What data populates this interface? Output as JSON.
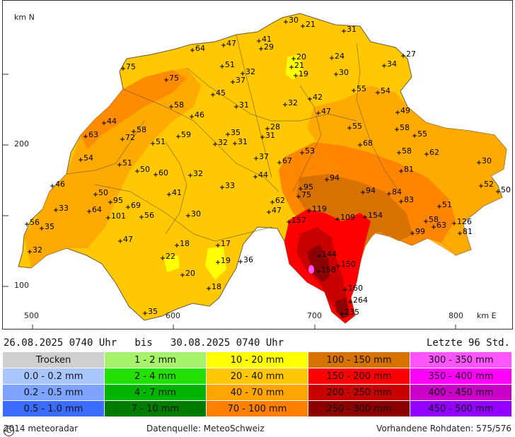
{
  "axes": {
    "north_label": "km N",
    "east_label": "km E",
    "y_ticks": [
      "200",
      "100"
    ],
    "x_ticks": [
      "500",
      "600",
      "700",
      "800"
    ]
  },
  "info": {
    "period": "26.08.2025 0740 Uhr   bis   30.08.2025 0740 Uhr",
    "last": "Letzte 96 Std."
  },
  "legend": [
    {
      "label": "Trocken",
      "color": "#cfcfcf"
    },
    {
      "label": "1 - 2 mm",
      "color": "#a6f26a"
    },
    {
      "label": "10 - 20 mm",
      "color": "#ffff00"
    },
    {
      "label": "100 - 150 mm",
      "color": "#d77100"
    },
    {
      "label": "300 - 350 mm",
      "color": "#ff55ff"
    },
    {
      "label": "0.0 - 0.2 mm",
      "color": "#aac6ff"
    },
    {
      "label": "2 - 4 mm",
      "color": "#22e000"
    },
    {
      "label": "20 - 40 mm",
      "color": "#ffc800"
    },
    {
      "label": "150 - 200 mm",
      "color": "#ff0000"
    },
    {
      "label": "350 - 400 mm",
      "color": "#ff00ff"
    },
    {
      "label": "0.2 - 0.5 mm",
      "color": "#7ea3ff"
    },
    {
      "label": "4 - 7 mm",
      "color": "#00b400"
    },
    {
      "label": "40 - 70 mm",
      "color": "#ffa500"
    },
    {
      "label": "200 - 250 mm",
      "color": "#c80000"
    },
    {
      "label": "400 - 450 mm",
      "color": "#c800c8"
    },
    {
      "label": "0.5 - 1.0 mm",
      "color": "#3a6cff"
    },
    {
      "label": "7 - 10 mm",
      "color": "#007d00"
    },
    {
      "label": "70 - 100 mm",
      "color": "#ff8000"
    },
    {
      "label": "250 - 300 mm",
      "color": "#8c0000"
    },
    {
      "label": "450 - 500 mm",
      "color": "#9400ff"
    }
  ],
  "footer": {
    "copyright": "2014  meteoradar",
    "source": "Datenquelle: MeteoSchweiz",
    "raw": "Vorhandene Rohdaten: 575/576"
  },
  "stations": [
    {
      "v": "30",
      "x": 400,
      "y": 30
    },
    {
      "v": "21",
      "x": 424,
      "y": 36
    },
    {
      "v": "31",
      "x": 482,
      "y": 43
    },
    {
      "v": "41",
      "x": 362,
      "y": 57
    },
    {
      "v": "47",
      "x": 312,
      "y": 63
    },
    {
      "v": "64",
      "x": 268,
      "y": 70
    },
    {
      "v": "29",
      "x": 365,
      "y": 68
    },
    {
      "v": "27",
      "x": 566,
      "y": 78
    },
    {
      "v": "24",
      "x": 465,
      "y": 81
    },
    {
      "v": "20",
      "x": 411,
      "y": 82
    },
    {
      "v": "34",
      "x": 539,
      "y": 92
    },
    {
      "v": "75",
      "x": 170,
      "y": 96
    },
    {
      "v": "51",
      "x": 310,
      "y": 93
    },
    {
      "v": "21",
      "x": 408,
      "y": 94
    },
    {
      "v": "32",
      "x": 339,
      "y": 103
    },
    {
      "v": "30",
      "x": 471,
      "y": 104
    },
    {
      "v": "19",
      "x": 414,
      "y": 106
    },
    {
      "v": "75",
      "x": 231,
      "y": 112
    },
    {
      "v": "37",
      "x": 325,
      "y": 115
    },
    {
      "v": "55",
      "x": 496,
      "y": 127
    },
    {
      "v": "54",
      "x": 530,
      "y": 130
    },
    {
      "v": "45",
      "x": 297,
      "y": 133
    },
    {
      "v": "42",
      "x": 434,
      "y": 139
    },
    {
      "v": "32",
      "x": 399,
      "y": 147
    },
    {
      "v": "58",
      "x": 238,
      "y": 150
    },
    {
      "v": "31",
      "x": 330,
      "y": 150
    },
    {
      "v": "47",
      "x": 446,
      "y": 159
    },
    {
      "v": "49",
      "x": 558,
      "y": 158
    },
    {
      "v": "46",
      "x": 267,
      "y": 164
    },
    {
      "v": "44",
      "x": 143,
      "y": 173
    },
    {
      "v": "28",
      "x": 374,
      "y": 181
    },
    {
      "v": "55",
      "x": 490,
      "y": 180
    },
    {
      "v": "58",
      "x": 557,
      "y": 182
    },
    {
      "v": "58",
      "x": 185,
      "y": 185
    },
    {
      "v": "35",
      "x": 318,
      "y": 189
    },
    {
      "v": "55",
      "x": 582,
      "y": 191
    },
    {
      "v": "63",
      "x": 117,
      "y": 192
    },
    {
      "v": "59",
      "x": 248,
      "y": 192
    },
    {
      "v": "31",
      "x": 367,
      "y": 193
    },
    {
      "v": "72",
      "x": 169,
      "y": 196
    },
    {
      "v": "51",
      "x": 212,
      "y": 202
    },
    {
      "v": "32",
      "x": 300,
      "y": 203
    },
    {
      "v": "31",
      "x": 328,
      "y": 202
    },
    {
      "v": "68",
      "x": 505,
      "y": 204
    },
    {
      "v": "53",
      "x": 423,
      "y": 215
    },
    {
      "v": "58",
      "x": 560,
      "y": 215
    },
    {
      "v": "62",
      "x": 599,
      "y": 217
    },
    {
      "v": "54",
      "x": 110,
      "y": 225
    },
    {
      "v": "37",
      "x": 358,
      "y": 223
    },
    {
      "v": "67",
      "x": 391,
      "y": 229
    },
    {
      "v": "30",
      "x": 673,
      "y": 229
    },
    {
      "v": "51",
      "x": 165,
      "y": 232
    },
    {
      "v": "50",
      "x": 190,
      "y": 241
    },
    {
      "v": "81",
      "x": 563,
      "y": 241
    },
    {
      "v": "60",
      "x": 216,
      "y": 246
    },
    {
      "v": "32",
      "x": 265,
      "y": 247
    },
    {
      "v": "44",
      "x": 357,
      "y": 249
    },
    {
      "v": "94",
      "x": 458,
      "y": 253
    },
    {
      "v": "46",
      "x": 70,
      "y": 262
    },
    {
      "v": "33",
      "x": 310,
      "y": 264
    },
    {
      "v": "52",
      "x": 676,
      "y": 262
    },
    {
      "v": "50",
      "x": 700,
      "y": 270
    },
    {
      "v": "95",
      "x": 421,
      "y": 266
    },
    {
      "v": "50",
      "x": 131,
      "y": 274
    },
    {
      "v": "41",
      "x": 235,
      "y": 274
    },
    {
      "v": "94",
      "x": 509,
      "y": 271
    },
    {
      "v": "84",
      "x": 546,
      "y": 273
    },
    {
      "v": "75",
      "x": 418,
      "y": 277
    },
    {
      "v": "62",
      "x": 381,
      "y": 285
    },
    {
      "v": "83",
      "x": 563,
      "y": 284
    },
    {
      "v": "95",
      "x": 152,
      "y": 285
    },
    {
      "v": "69",
      "x": 177,
      "y": 292
    },
    {
      "v": "51",
      "x": 617,
      "y": 291
    },
    {
      "v": "33",
      "x": 75,
      "y": 296
    },
    {
      "v": "64",
      "x": 122,
      "y": 298
    },
    {
      "v": "119",
      "x": 433,
      "y": 297
    },
    {
      "v": "47",
      "x": 376,
      "y": 299
    },
    {
      "v": "30",
      "x": 262,
      "y": 304
    },
    {
      "v": "56",
      "x": 196,
      "y": 306
    },
    {
      "v": "101",
      "x": 149,
      "y": 307
    },
    {
      "v": "109",
      "x": 473,
      "y": 309
    },
    {
      "v": "154",
      "x": 512,
      "y": 306
    },
    {
      "v": "157",
      "x": 404,
      "y": 313
    },
    {
      "v": "58",
      "x": 598,
      "y": 312
    },
    {
      "v": "56",
      "x": 34,
      "y": 316
    },
    {
      "v": "126",
      "x": 638,
      "y": 315
    },
    {
      "v": "63",
      "x": 609,
      "y": 320
    },
    {
      "v": "35",
      "x": 55,
      "y": 322
    },
    {
      "v": "99",
      "x": 579,
      "y": 329
    },
    {
      "v": "81",
      "x": 646,
      "y": 329
    },
    {
      "v": "47",
      "x": 166,
      "y": 340
    },
    {
      "v": "18",
      "x": 246,
      "y": 346
    },
    {
      "v": "17",
      "x": 304,
      "y": 346
    },
    {
      "v": "32",
      "x": 38,
      "y": 355
    },
    {
      "v": "144",
      "x": 447,
      "y": 361
    },
    {
      "v": "22",
      "x": 226,
      "y": 364
    },
    {
      "v": "19",
      "x": 304,
      "y": 370
    },
    {
      "v": "36",
      "x": 336,
      "y": 369
    },
    {
      "v": "150",
      "x": 474,
      "y": 375
    },
    {
      "v": "158",
      "x": 446,
      "y": 383
    },
    {
      "v": "20",
      "x": 254,
      "y": 388
    },
    {
      "v": "18",
      "x": 291,
      "y": 407
    },
    {
      "v": "160",
      "x": 484,
      "y": 409
    },
    {
      "v": "264",
      "x": 491,
      "y": 426
    },
    {
      "v": "235",
      "x": 479,
      "y": 443
    },
    {
      "v": "35",
      "x": 201,
      "y": 442
    }
  ]
}
